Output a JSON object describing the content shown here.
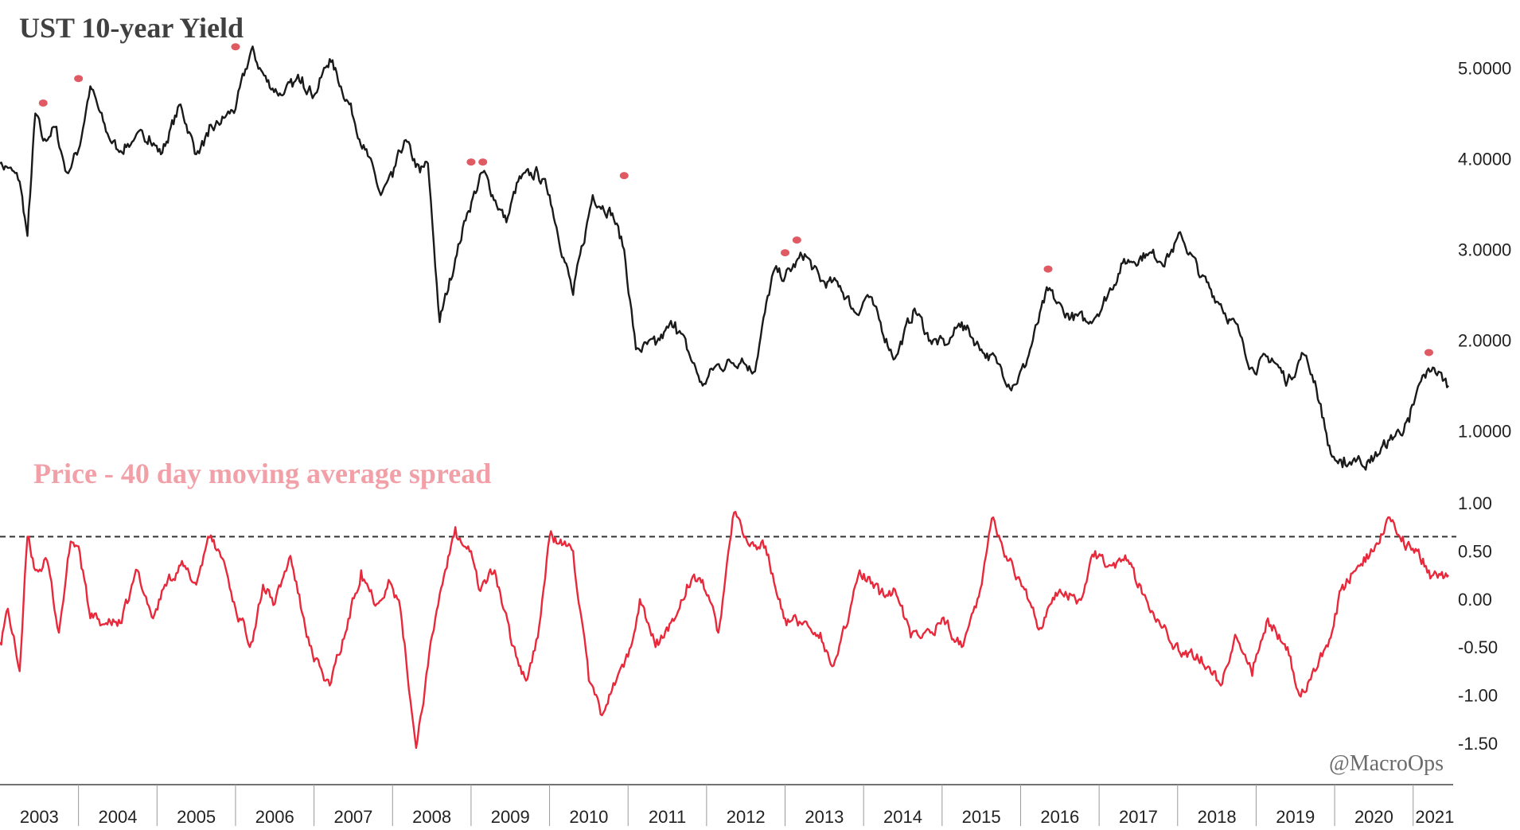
{
  "chart_data": [
    {
      "type": "line",
      "title": "UST 10-year Yield",
      "ylim": [
        0.4,
        5.4
      ],
      "yticks": [
        "5.0000",
        "4.0000",
        "3.0000",
        "2.0000",
        "1.0000"
      ],
      "line_color": "#1a1a1a",
      "peak_marker_color": "#e05a64",
      "series": [
        {
          "x": [
            2003.0,
            2003.1,
            2003.25,
            2003.35,
            2003.45,
            2003.55,
            2003.7,
            2003.85,
            2004.0,
            2004.15,
            2004.35,
            2004.5,
            2004.7,
            2004.9,
            2005.05,
            2005.3,
            2005.5,
            2005.65,
            2005.85,
            2006.0,
            2006.2,
            2006.4,
            2006.6,
            2006.85,
            2007.0,
            2007.2,
            2007.45,
            2007.65,
            2007.85,
            2008.0,
            2008.15,
            2008.35,
            2008.45,
            2008.6,
            2008.8,
            2008.95,
            2009.15,
            2009.45,
            2009.6,
            2009.85,
            2010.0,
            2010.3,
            2010.55,
            2010.8,
            2010.95,
            2011.1,
            2011.35,
            2011.6,
            2011.75,
            2011.95,
            2012.1,
            2012.45,
            2012.6,
            2012.85,
            2013.0,
            2013.25,
            2013.45,
            2013.7,
            2013.9,
            2014.05,
            2014.4,
            2014.65,
            2014.85,
            2015.05,
            2015.25,
            2015.5,
            2015.7,
            2015.9,
            2016.05,
            2016.35,
            2016.55,
            2016.85,
            2017.05,
            2017.3,
            2017.6,
            2017.85,
            2018.05,
            2018.3,
            2018.55,
            2018.8,
            2018.95,
            2019.2,
            2019.4,
            2019.6,
            2019.75,
            2019.95,
            2020.1,
            2020.25,
            2020.45,
            2020.7,
            2020.95,
            2021.1,
            2021.25,
            2021.45
          ],
          "y": [
            3.95,
            3.9,
            3.75,
            3.15,
            4.5,
            4.2,
            4.35,
            3.85,
            4.1,
            4.8,
            4.3,
            4.1,
            4.2,
            4.25,
            4.05,
            4.6,
            4.05,
            4.25,
            4.45,
            4.55,
            5.2,
            4.85,
            4.7,
            4.9,
            4.7,
            5.1,
            4.6,
            4.1,
            3.6,
            3.8,
            4.2,
            3.85,
            3.95,
            2.2,
            2.9,
            3.4,
            3.85,
            3.3,
            3.75,
            3.85,
            3.6,
            2.5,
            3.6,
            3.4,
            3.0,
            1.9,
            1.95,
            2.2,
            1.9,
            1.5,
            1.7,
            1.8,
            1.65,
            2.75,
            2.7,
            2.95,
            2.65,
            2.6,
            2.3,
            2.5,
            1.8,
            2.35,
            2.0,
            1.95,
            2.2,
            1.9,
            1.75,
            1.5,
            1.7,
            2.55,
            2.3,
            2.2,
            2.4,
            2.85,
            2.95,
            2.9,
            3.15,
            2.7,
            2.4,
            2.05,
            1.7,
            1.8,
            1.55,
            1.85,
            1.55,
            0.75,
            0.6,
            0.7,
            0.65,
            0.9,
            1.1,
            1.55,
            1.7,
            1.5
          ]
        }
      ],
      "peak_markers": {
        "x": [
          2003.55,
          2004.0,
          2006.0,
          2009.0,
          2009.15,
          2010.95,
          2013.0,
          2013.15,
          2016.35,
          2021.2
        ],
        "y": [
          4.58,
          4.85,
          5.2,
          3.93,
          3.93,
          3.78,
          2.93,
          3.07,
          2.75,
          1.83
        ]
      }
    },
    {
      "type": "line",
      "title": "Price - 40 day moving average spread",
      "ylim": [
        -1.65,
        1.15
      ],
      "yticks": [
        "1.00",
        "0.50",
        "0.00",
        "-0.50",
        "-1.00",
        "-1.50"
      ],
      "line_color": "#e8293b",
      "threshold": 0.65,
      "series": [
        {
          "x": [
            2003.0,
            2003.1,
            2003.25,
            2003.35,
            2003.45,
            2003.6,
            2003.75,
            2003.9,
            2004.0,
            2004.15,
            2004.35,
            2004.55,
            2004.75,
            2004.95,
            2005.1,
            2005.3,
            2005.5,
            2005.65,
            2005.85,
            2006.0,
            2006.2,
            2006.35,
            2006.5,
            2006.7,
            2006.85,
            2007.0,
            2007.2,
            2007.4,
            2007.6,
            2007.8,
            2007.95,
            2008.1,
            2008.3,
            2008.45,
            2008.6,
            2008.8,
            2009.0,
            2009.1,
            2009.3,
            2009.5,
            2009.7,
            2009.85,
            2010.0,
            2010.3,
            2010.5,
            2010.65,
            2010.85,
            2011.0,
            2011.15,
            2011.35,
            2011.6,
            2011.75,
            2011.95,
            2012.15,
            2012.35,
            2012.55,
            2012.75,
            2012.95,
            2013.0,
            2013.2,
            2013.45,
            2013.6,
            2013.8,
            2013.95,
            2014.2,
            2014.4,
            2014.6,
            2014.85,
            2015.0,
            2015.25,
            2015.45,
            2015.65,
            2015.85,
            2016.05,
            2016.25,
            2016.5,
            2016.75,
            2016.95,
            2017.15,
            2017.35,
            2017.6,
            2017.85,
            2018.05,
            2018.3,
            2018.55,
            2018.75,
            2018.95,
            2019.15,
            2019.4,
            2019.55,
            2019.75,
            2019.95,
            2020.1,
            2020.3,
            2020.5,
            2020.7,
            2020.85,
            2021.05,
            2021.2,
            2021.35,
            2021.45
          ],
          "y": [
            -0.45,
            -0.1,
            -0.75,
            0.65,
            0.3,
            0.4,
            -0.35,
            0.6,
            0.55,
            -0.2,
            -0.25,
            -0.25,
            0.3,
            -0.2,
            0.15,
            0.35,
            0.15,
            0.65,
            0.4,
            -0.1,
            -0.45,
            0.15,
            -0.05,
            0.45,
            -0.15,
            -0.65,
            -0.9,
            -0.35,
            0.3,
            -0.05,
            0.2,
            -0.1,
            -1.55,
            -0.7,
            0.05,
            0.75,
            0.5,
            0.1,
            0.3,
            -0.4,
            -0.85,
            -0.4,
            0.65,
            0.5,
            -0.85,
            -1.2,
            -0.85,
            -0.6,
            0.0,
            -0.5,
            -0.2,
            0.15,
            0.2,
            -0.35,
            0.9,
            0.55,
            0.55,
            -0.1,
            -0.2,
            -0.25,
            -0.35,
            -0.7,
            -0.25,
            0.3,
            0.05,
            0.1,
            -0.4,
            -0.35,
            -0.2,
            -0.5,
            0.0,
            0.85,
            0.4,
            0.1,
            -0.3,
            0.1,
            0.0,
            0.5,
            0.35,
            0.4,
            0.0,
            -0.3,
            -0.6,
            -0.6,
            -0.9,
            -0.4,
            -0.8,
            -0.2,
            -0.5,
            -1.0,
            -0.75,
            -0.4,
            0.15,
            0.35,
            0.5,
            0.85,
            0.6,
            0.5,
            0.3,
            0.25,
            0.25
          ]
        }
      ]
    }
  ],
  "x_axis": {
    "labels": [
      "2003",
      "2004",
      "2005",
      "2006",
      "2007",
      "2008",
      "2009",
      "2010",
      "2011",
      "2012",
      "2013",
      "2014",
      "2015",
      "2016",
      "2017",
      "2018",
      "2019",
      "2020",
      "2021"
    ]
  },
  "watermark": "@MacroOps"
}
